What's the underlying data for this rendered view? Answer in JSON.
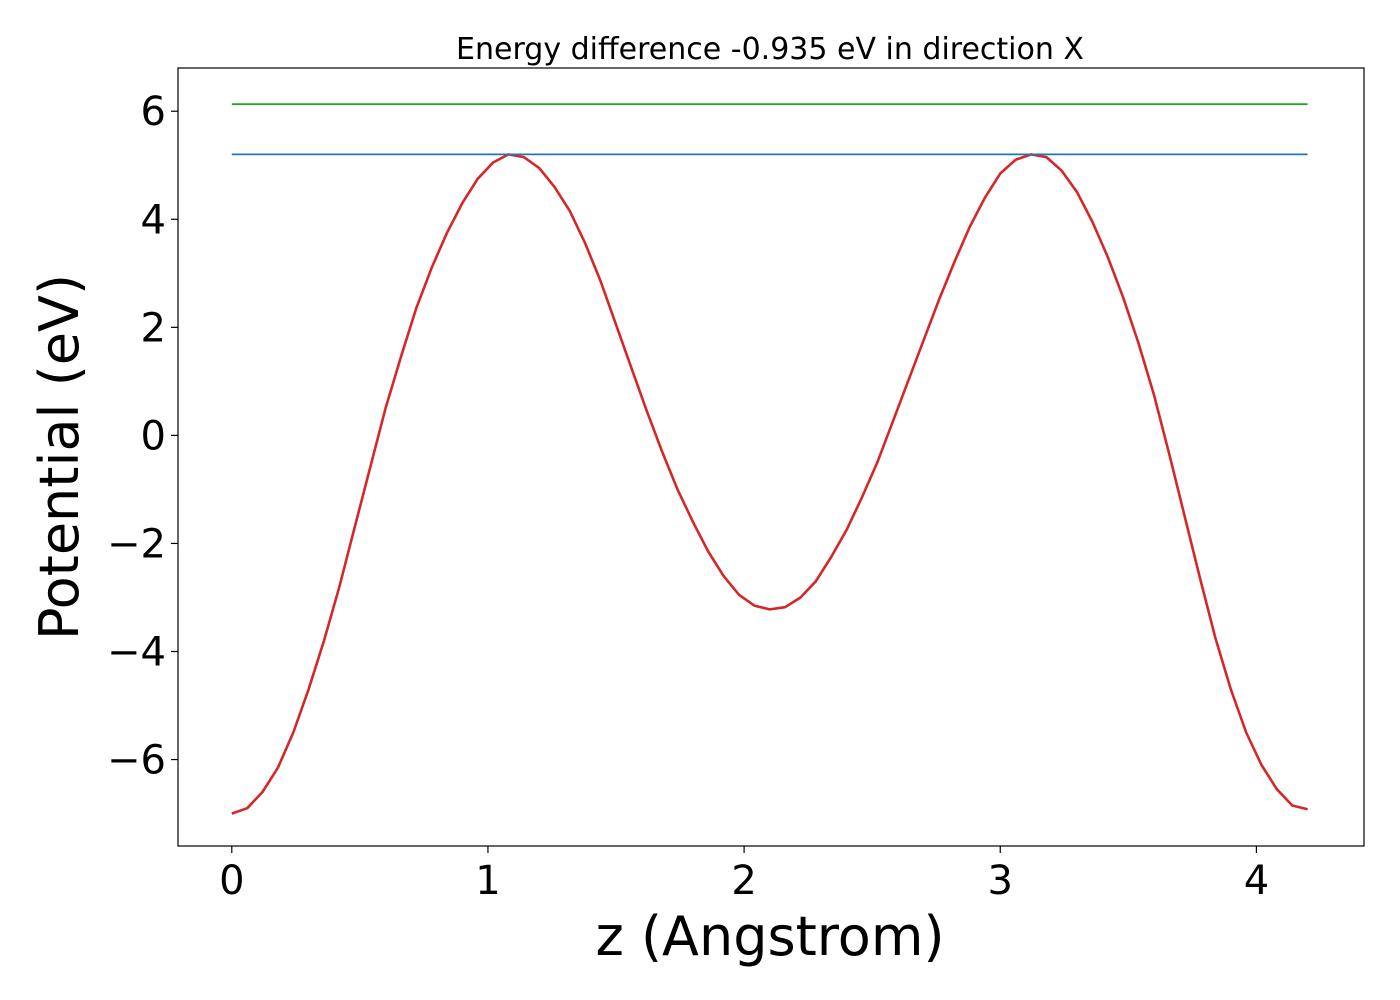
{
  "chart_data": {
    "type": "line",
    "title": "Energy difference -0.935 eV in direction X",
    "xlabel": "z (Angstrom)",
    "ylabel": "Potential (eV)",
    "xlim": [
      -0.21,
      4.42
    ],
    "ylim": [
      -7.6,
      6.8
    ],
    "xticks": [
      0,
      1,
      2,
      3,
      4
    ],
    "xtick_labels": [
      "0",
      "1",
      "2",
      "3",
      "4"
    ],
    "yticks": [
      -6,
      -4,
      -2,
      0,
      2,
      4,
      6
    ],
    "ytick_labels": [
      "−6",
      "−4",
      "−2",
      "0",
      "2",
      "4",
      "6"
    ],
    "grid": false,
    "series": [
      {
        "color": "#d62728",
        "x": [
          0.0,
          0.06,
          0.12,
          0.18,
          0.24,
          0.3,
          0.36,
          0.42,
          0.48,
          0.54,
          0.6,
          0.66,
          0.72,
          0.78,
          0.84,
          0.9,
          0.96,
          1.02,
          1.08,
          1.14,
          1.2,
          1.26,
          1.32,
          1.38,
          1.44,
          1.5,
          1.56,
          1.62,
          1.68,
          1.74,
          1.8,
          1.86,
          1.92,
          1.98,
          2.04,
          2.1,
          2.16,
          2.22,
          2.28,
          2.34,
          2.4,
          2.46,
          2.52,
          2.58,
          2.64,
          2.7,
          2.76,
          2.82,
          2.88,
          2.94,
          3.0,
          3.06,
          3.12,
          3.18,
          3.24,
          3.3,
          3.36,
          3.42,
          3.48,
          3.54,
          3.6,
          3.66,
          3.72,
          3.78,
          3.84,
          3.9,
          3.96,
          4.02,
          4.08,
          4.14,
          4.2
        ],
        "y": [
          -7.0,
          -6.9,
          -6.6,
          -6.15,
          -5.5,
          -4.7,
          -3.8,
          -2.8,
          -1.7,
          -0.6,
          0.5,
          1.45,
          2.35,
          3.1,
          3.75,
          4.3,
          4.75,
          5.05,
          5.2,
          5.15,
          4.95,
          4.6,
          4.15,
          3.55,
          2.85,
          2.05,
          1.25,
          0.45,
          -0.3,
          -1.0,
          -1.6,
          -2.15,
          -2.6,
          -2.95,
          -3.15,
          -3.22,
          -3.18,
          -3.0,
          -2.7,
          -2.25,
          -1.75,
          -1.15,
          -0.5,
          0.25,
          1.0,
          1.75,
          2.5,
          3.2,
          3.85,
          4.4,
          4.85,
          5.1,
          5.2,
          5.15,
          4.9,
          4.5,
          3.95,
          3.3,
          2.55,
          1.7,
          0.75,
          -0.35,
          -1.5,
          -2.65,
          -3.75,
          -4.7,
          -5.5,
          -6.1,
          -6.55,
          -6.85,
          -6.92
        ]
      },
      {
        "color": "#1f77b4",
        "x": [
          0.0,
          4.2
        ],
        "y": [
          5.2,
          5.2
        ]
      },
      {
        "color": "#2ca02c",
        "x": [
          0.0,
          4.2
        ],
        "y": [
          6.13,
          6.13
        ]
      }
    ]
  }
}
